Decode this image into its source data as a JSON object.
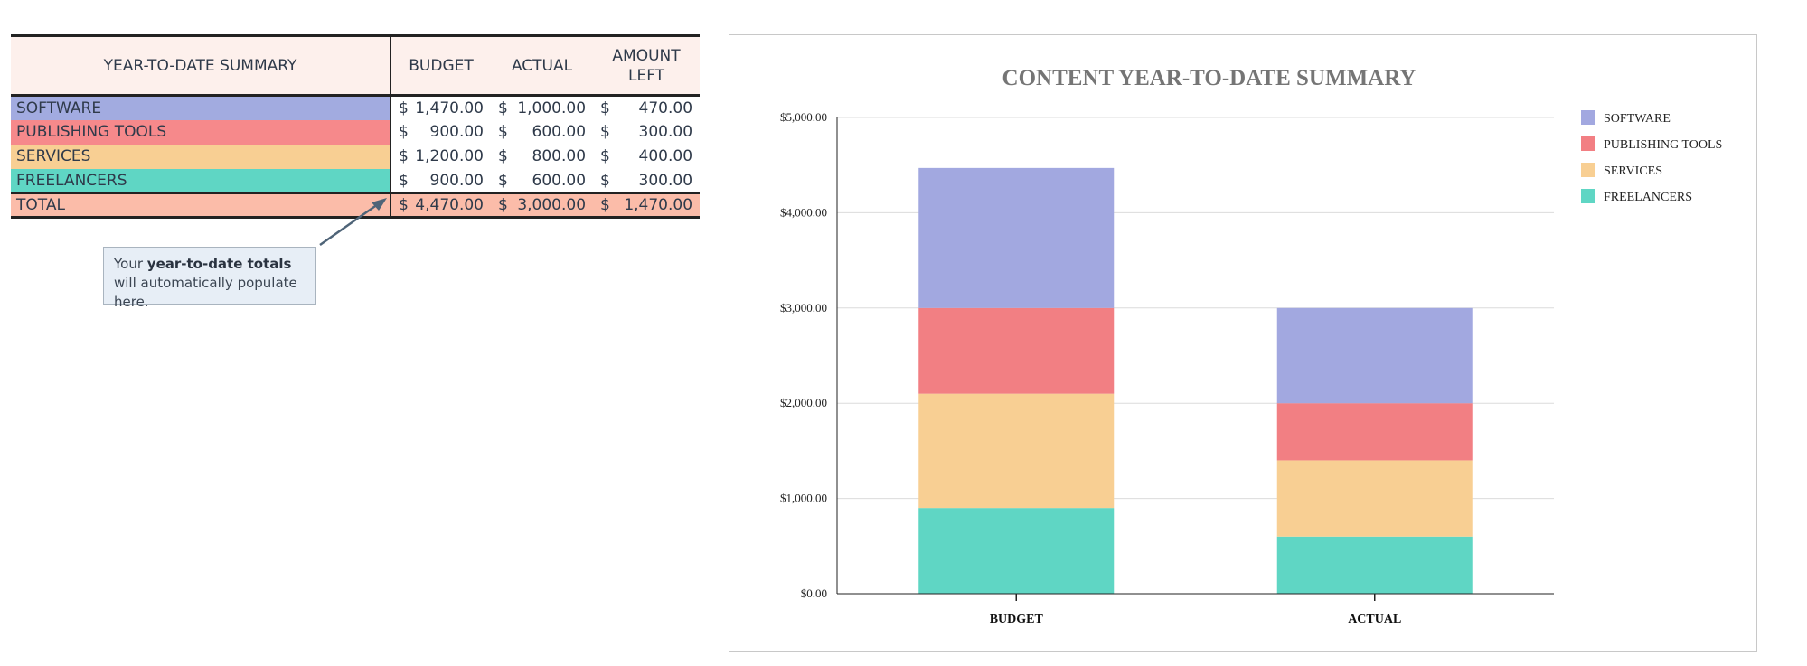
{
  "table": {
    "headers": {
      "category": "YEAR-TO-DATE SUMMARY",
      "budget": "BUDGET",
      "actual": "ACTUAL",
      "amount_left_line1": "AMOUNT",
      "amount_left_line2": "LEFT"
    },
    "currency_symbol": "$",
    "rows": [
      {
        "category": "SOFTWARE",
        "budget": "1,470.00",
        "actual": "1,000.00",
        "left": "470.00",
        "color": "#a2abe0"
      },
      {
        "category": "PUBLISHING TOOLS",
        "budget": "900.00",
        "actual": "600.00",
        "left": "300.00",
        "color": "#f6898b"
      },
      {
        "category": "SERVICES",
        "budget": "1,200.00",
        "actual": "800.00",
        "left": "400.00",
        "color": "#f8cf93"
      },
      {
        "category": "FREELANCERS",
        "budget": "900.00",
        "actual": "600.00",
        "left": "300.00",
        "color": "#5fd6c4"
      }
    ],
    "total": {
      "category": "TOTAL",
      "budget": "4,470.00",
      "actual": "3,000.00",
      "left": "1,470.00",
      "color": "#fbbca9"
    }
  },
  "callout": {
    "text_before": "Your ",
    "text_bold": "year-to-date totals",
    "text_after": " will automatically populate here."
  },
  "chart_data": {
    "type": "bar",
    "stacked": true,
    "title": "CONTENT YEAR-TO-DATE SUMMARY",
    "categories": [
      "BUDGET",
      "ACTUAL"
    ],
    "series": [
      {
        "name": "FREELANCERS",
        "values": [
          900,
          600
        ],
        "color": "#5fd6c4"
      },
      {
        "name": "SERVICES",
        "values": [
          1200,
          800
        ],
        "color": "#f8cf93"
      },
      {
        "name": "PUBLISHING TOOLS",
        "values": [
          900,
          600
        ],
        "color": "#f27f83"
      },
      {
        "name": "SOFTWARE",
        "values": [
          1470,
          1000
        ],
        "color": "#a2a8e0"
      }
    ],
    "legend_order": [
      "SOFTWARE",
      "PUBLISHING TOOLS",
      "SERVICES",
      "FREELANCERS"
    ],
    "legend_position": "right",
    "y_ticks": [
      "$0.00",
      "$1,000.00",
      "$2,000.00",
      "$3,000.00",
      "$4,000.00",
      "$5,000.00"
    ],
    "ylim": [
      0,
      5000
    ],
    "grid": true,
    "xlabel": "",
    "ylabel": ""
  }
}
